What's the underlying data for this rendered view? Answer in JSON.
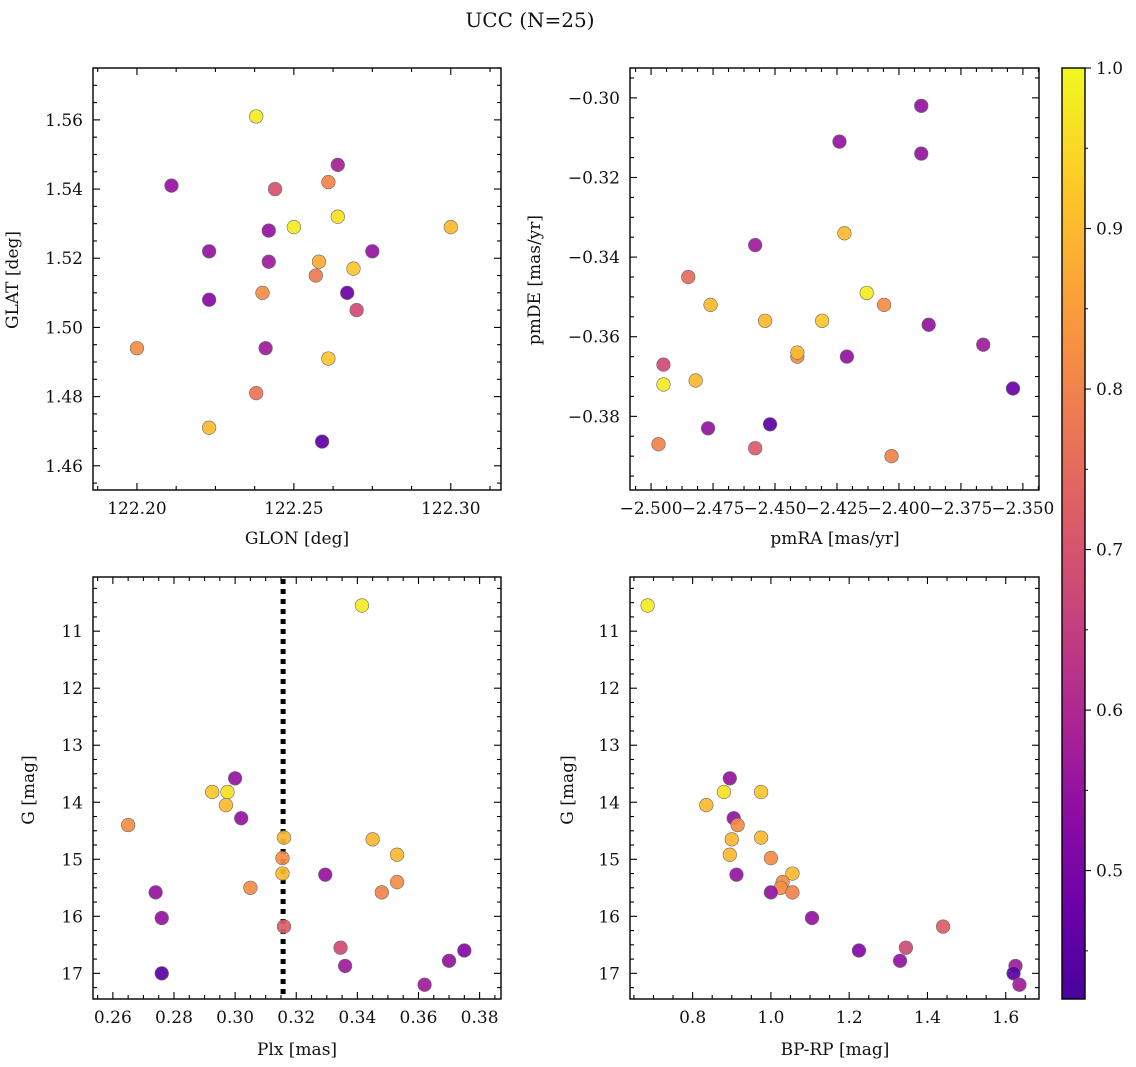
{
  "suptitle": "UCC (N=25)",
  "colorbar": {
    "range": [
      0.42,
      1.0
    ],
    "ticks": [
      0.5,
      0.6,
      0.7,
      0.8,
      0.9,
      1.0
    ],
    "tick_labels": [
      "0.5",
      "0.6",
      "0.7",
      "0.8",
      "0.9",
      "1.0"
    ],
    "colormap": "plasma"
  },
  "chart_data": [
    {
      "type": "scatter",
      "id": "glon-glat",
      "xlabel": "GLON [deg]",
      "ylabel": "GLAT [deg]",
      "xlim": [
        122.186,
        122.316
      ],
      "ylim": [
        1.453,
        1.575
      ],
      "invert_y": false,
      "xticks": [
        122.2,
        122.25,
        122.3
      ],
      "xtick_labels": [
        "122.20",
        "122.25",
        "122.30"
      ],
      "yticks": [
        1.46,
        1.48,
        1.5,
        1.52,
        1.54,
        1.56
      ],
      "ytick_labels": [
        "1.46",
        "1.48",
        "1.50",
        "1.52",
        "1.54",
        "1.56"
      ],
      "points": [
        {
          "x": 122.238,
          "y": 1.561,
          "c": 0.98
        },
        {
          "x": 122.211,
          "y": 1.541,
          "c": 0.55
        },
        {
          "x": 122.264,
          "y": 1.547,
          "c": 0.58
        },
        {
          "x": 122.244,
          "y": 1.54,
          "c": 0.7
        },
        {
          "x": 122.261,
          "y": 1.542,
          "c": 0.8
        },
        {
          "x": 122.264,
          "y": 1.532,
          "c": 0.96
        },
        {
          "x": 122.25,
          "y": 1.529,
          "c": 0.98
        },
        {
          "x": 122.3,
          "y": 1.529,
          "c": 0.9
        },
        {
          "x": 122.242,
          "y": 1.528,
          "c": 0.55
        },
        {
          "x": 122.223,
          "y": 1.522,
          "c": 0.55
        },
        {
          "x": 122.275,
          "y": 1.522,
          "c": 0.55
        },
        {
          "x": 122.242,
          "y": 1.519,
          "c": 0.57
        },
        {
          "x": 122.258,
          "y": 1.519,
          "c": 0.88
        },
        {
          "x": 122.269,
          "y": 1.517,
          "c": 0.92
        },
        {
          "x": 122.257,
          "y": 1.515,
          "c": 0.78
        },
        {
          "x": 122.24,
          "y": 1.51,
          "c": 0.82
        },
        {
          "x": 122.267,
          "y": 1.51,
          "c": 0.48
        },
        {
          "x": 122.223,
          "y": 1.508,
          "c": 0.52
        },
        {
          "x": 122.27,
          "y": 1.505,
          "c": 0.68
        },
        {
          "x": 122.2,
          "y": 1.494,
          "c": 0.82
        },
        {
          "x": 122.241,
          "y": 1.494,
          "c": 0.57
        },
        {
          "x": 122.261,
          "y": 1.491,
          "c": 0.92
        },
        {
          "x": 122.238,
          "y": 1.481,
          "c": 0.77
        },
        {
          "x": 122.223,
          "y": 1.471,
          "c": 0.9
        },
        {
          "x": 122.259,
          "y": 1.467,
          "c": 0.45
        }
      ]
    },
    {
      "type": "scatter",
      "id": "pmra-pmde",
      "xlabel": "pmRA [mas/yr]",
      "ylabel": "pmDE [mas/yr]",
      "xlim": [
        -2.5085,
        -2.3435
      ],
      "ylim": [
        -0.3985,
        -0.2925
      ],
      "invert_y": false,
      "xticks": [
        -2.5,
        -2.475,
        -2.45,
        -2.425,
        -2.4,
        -2.375,
        -2.35
      ],
      "xtick_labels": [
        "−2.500",
        "−2.475",
        "−2.450",
        "−2.425",
        "−2.400",
        "−2.375",
        "−2.350"
      ],
      "yticks": [
        -0.38,
        -0.36,
        -0.34,
        -0.32,
        -0.3
      ],
      "ytick_labels": [
        "−0.38",
        "−0.36",
        "−0.34",
        "−0.32",
        "−0.30"
      ],
      "points": [
        {
          "x": -2.391,
          "y": -0.302,
          "c": 0.55
        },
        {
          "x": -2.424,
          "y": -0.311,
          "c": 0.55
        },
        {
          "x": -2.391,
          "y": -0.314,
          "c": 0.55
        },
        {
          "x": -2.422,
          "y": -0.334,
          "c": 0.9
        },
        {
          "x": -2.458,
          "y": -0.337,
          "c": 0.57
        },
        {
          "x": -2.485,
          "y": -0.345,
          "c": 0.75
        },
        {
          "x": -2.406,
          "y": -0.352,
          "c": 0.82
        },
        {
          "x": -2.476,
          "y": -0.352,
          "c": 0.9
        },
        {
          "x": -2.413,
          "y": -0.349,
          "c": 0.98
        },
        {
          "x": -2.454,
          "y": -0.356,
          "c": 0.9
        },
        {
          "x": -2.431,
          "y": -0.356,
          "c": 0.92
        },
        {
          "x": -2.388,
          "y": -0.357,
          "c": 0.55
        },
        {
          "x": -2.366,
          "y": -0.362,
          "c": 0.57
        },
        {
          "x": -2.441,
          "y": -0.365,
          "c": 0.82
        },
        {
          "x": -2.441,
          "y": -0.364,
          "c": 0.9
        },
        {
          "x": -2.421,
          "y": -0.365,
          "c": 0.55
        },
        {
          "x": -2.495,
          "y": -0.367,
          "c": 0.68
        },
        {
          "x": -2.495,
          "y": -0.372,
          "c": 0.98
        },
        {
          "x": -2.482,
          "y": -0.371,
          "c": 0.9
        },
        {
          "x": -2.354,
          "y": -0.373,
          "c": 0.48
        },
        {
          "x": -2.477,
          "y": -0.383,
          "c": 0.55
        },
        {
          "x": -2.452,
          "y": -0.382,
          "c": 0.45
        },
        {
          "x": -2.497,
          "y": -0.387,
          "c": 0.8
        },
        {
          "x": -2.458,
          "y": -0.388,
          "c": 0.72
        },
        {
          "x": -2.403,
          "y": -0.39,
          "c": 0.8
        }
      ]
    },
    {
      "type": "scatter",
      "id": "plx-g",
      "xlabel": "Plx [mas]",
      "ylabel": "G [mag]",
      "xlim": [
        0.2535,
        0.387
      ],
      "ylim": [
        10.05,
        17.45
      ],
      "invert_y": true,
      "vline": {
        "x": 0.3157,
        "style": "dotted",
        "color": "#000000"
      },
      "xticks": [
        0.26,
        0.28,
        0.3,
        0.32,
        0.34,
        0.36,
        0.38
      ],
      "xtick_labels": [
        "0.26",
        "0.28",
        "0.30",
        "0.32",
        "0.34",
        "0.36",
        "0.38"
      ],
      "yticks": [
        11,
        12,
        13,
        14,
        15,
        16,
        17
      ],
      "ytick_labels": [
        "11",
        "12",
        "13",
        "14",
        "15",
        "16",
        "17"
      ],
      "points": [
        {
          "x": 0.3415,
          "y": 10.55,
          "c": 0.98
        },
        {
          "x": 0.3,
          "y": 13.58,
          "c": 0.55
        },
        {
          "x": 0.2925,
          "y": 13.82,
          "c": 0.92
        },
        {
          "x": 0.2975,
          "y": 13.82,
          "c": 0.96
        },
        {
          "x": 0.297,
          "y": 14.05,
          "c": 0.9
        },
        {
          "x": 0.302,
          "y": 14.28,
          "c": 0.55
        },
        {
          "x": 0.265,
          "y": 14.4,
          "c": 0.82
        },
        {
          "x": 0.316,
          "y": 14.62,
          "c": 0.9
        },
        {
          "x": 0.345,
          "y": 14.65,
          "c": 0.9
        },
        {
          "x": 0.353,
          "y": 14.92,
          "c": 0.9
        },
        {
          "x": 0.3155,
          "y": 14.98,
          "c": 0.82
        },
        {
          "x": 0.3155,
          "y": 15.25,
          "c": 0.9
        },
        {
          "x": 0.3295,
          "y": 15.27,
          "c": 0.55
        },
        {
          "x": 0.353,
          "y": 15.4,
          "c": 0.82
        },
        {
          "x": 0.305,
          "y": 15.5,
          "c": 0.82
        },
        {
          "x": 0.274,
          "y": 15.58,
          "c": 0.55
        },
        {
          "x": 0.348,
          "y": 15.58,
          "c": 0.8
        },
        {
          "x": 0.276,
          "y": 16.03,
          "c": 0.55
        },
        {
          "x": 0.316,
          "y": 16.18,
          "c": 0.72
        },
        {
          "x": 0.3345,
          "y": 16.55,
          "c": 0.68
        },
        {
          "x": 0.375,
          "y": 16.6,
          "c": 0.52
        },
        {
          "x": 0.37,
          "y": 16.78,
          "c": 0.55
        },
        {
          "x": 0.336,
          "y": 16.87,
          "c": 0.57
        },
        {
          "x": 0.276,
          "y": 17.0,
          "c": 0.45
        },
        {
          "x": 0.362,
          "y": 17.2,
          "c": 0.57
        }
      ]
    },
    {
      "type": "scatter",
      "id": "bprp-g",
      "xlabel": "BP-RP [mag]",
      "ylabel": "G [mag]",
      "xlim": [
        0.64,
        1.685
      ],
      "ylim": [
        10.05,
        17.45
      ],
      "invert_y": true,
      "xticks": [
        0.8,
        1.0,
        1.2,
        1.4,
        1.6
      ],
      "xtick_labels": [
        "0.8",
        "1.0",
        "1.2",
        "1.4",
        "1.6"
      ],
      "yticks": [
        11,
        12,
        13,
        14,
        15,
        16,
        17
      ],
      "ytick_labels": [
        "11",
        "12",
        "13",
        "14",
        "15",
        "16",
        "17"
      ],
      "points": [
        {
          "x": 0.685,
          "y": 10.55,
          "c": 0.98
        },
        {
          "x": 0.895,
          "y": 13.58,
          "c": 0.55
        },
        {
          "x": 0.88,
          "y": 13.82,
          "c": 0.96
        },
        {
          "x": 0.975,
          "y": 13.82,
          "c": 0.92
        },
        {
          "x": 0.835,
          "y": 14.05,
          "c": 0.9
        },
        {
          "x": 0.905,
          "y": 14.28,
          "c": 0.55
        },
        {
          "x": 0.915,
          "y": 14.4,
          "c": 0.82
        },
        {
          "x": 0.975,
          "y": 14.62,
          "c": 0.9
        },
        {
          "x": 0.9,
          "y": 14.65,
          "c": 0.9
        },
        {
          "x": 0.895,
          "y": 14.92,
          "c": 0.9
        },
        {
          "x": 1.0,
          "y": 14.98,
          "c": 0.82
        },
        {
          "x": 1.055,
          "y": 15.25,
          "c": 0.9
        },
        {
          "x": 0.912,
          "y": 15.27,
          "c": 0.55
        },
        {
          "x": 1.03,
          "y": 15.4,
          "c": 0.82
        },
        {
          "x": 1.025,
          "y": 15.5,
          "c": 0.82
        },
        {
          "x": 1.0,
          "y": 15.58,
          "c": 0.55
        },
        {
          "x": 1.055,
          "y": 15.58,
          "c": 0.8
        },
        {
          "x": 1.105,
          "y": 16.03,
          "c": 0.55
        },
        {
          "x": 1.44,
          "y": 16.18,
          "c": 0.72
        },
        {
          "x": 1.345,
          "y": 16.55,
          "c": 0.68
        },
        {
          "x": 1.225,
          "y": 16.6,
          "c": 0.52
        },
        {
          "x": 1.33,
          "y": 16.78,
          "c": 0.55
        },
        {
          "x": 1.625,
          "y": 16.87,
          "c": 0.57
        },
        {
          "x": 1.62,
          "y": 17.0,
          "c": 0.45
        },
        {
          "x": 1.635,
          "y": 17.2,
          "c": 0.57
        }
      ]
    }
  ]
}
